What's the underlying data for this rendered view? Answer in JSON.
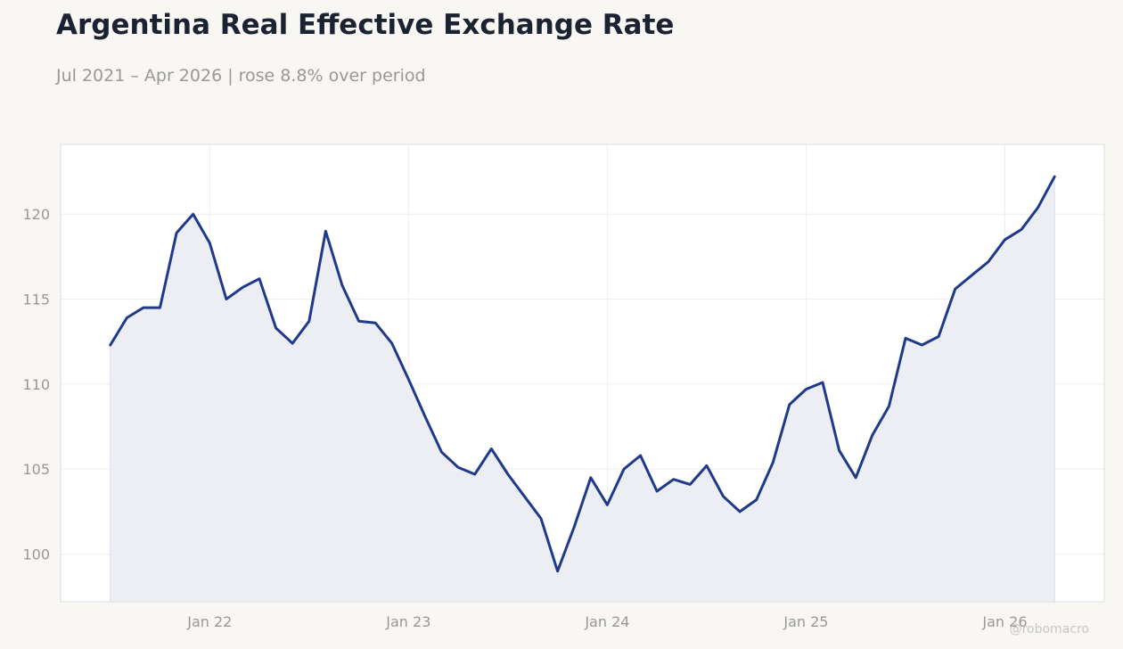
{
  "title": "Argentina Real Effective Exchange Rate",
  "subtitle": "Jul 2021 – Apr 2026 | rose 8.8% over period",
  "watermark": "@robomacro",
  "colors": {
    "line": "#1f3a8a",
    "fill": "#eceef4",
    "grid": "#eeeeee",
    "frame": "#dddddd",
    "background": "#f8f7f4",
    "plot_background": "#ffffff"
  },
  "chart_data": {
    "type": "area",
    "title": "Argentina Real Effective Exchange Rate",
    "subtitle": "Jul 2021 – Apr 2026 | rose 8.8% over period",
    "xlabel": "",
    "ylabel": "",
    "x_ticks": [
      {
        "date": "2022-01",
        "label": "Jan 22"
      },
      {
        "date": "2023-01",
        "label": "Jan 23"
      },
      {
        "date": "2024-01",
        "label": "Jan 24"
      },
      {
        "date": "2025-01",
        "label": "Jan 25"
      },
      {
        "date": "2026-01",
        "label": "Jan 26"
      }
    ],
    "y_ticks": [
      100,
      105,
      110,
      115,
      120
    ],
    "xlim": [
      "2021-04",
      "2026-07"
    ],
    "ylim": [
      97.2,
      124.1
    ],
    "grid": true,
    "legend": "none",
    "series": [
      {
        "x": [
          "2021-07",
          "2021-08",
          "2021-09",
          "2021-10",
          "2021-11",
          "2021-12",
          "2022-01",
          "2022-02",
          "2022-03",
          "2022-04",
          "2022-05",
          "2022-06",
          "2022-07",
          "2022-08",
          "2022-09",
          "2022-10",
          "2022-11",
          "2022-12",
          "2023-01",
          "2023-02",
          "2023-03",
          "2023-04",
          "2023-05",
          "2023-06",
          "2023-07",
          "2023-08",
          "2023-09",
          "2023-10",
          "2023-11",
          "2023-12",
          "2024-01",
          "2024-02",
          "2024-03",
          "2024-04",
          "2024-05",
          "2024-06",
          "2024-07",
          "2024-08",
          "2024-09",
          "2024-10",
          "2024-11",
          "2024-12",
          "2025-01",
          "2025-02",
          "2025-03",
          "2025-04",
          "2025-05",
          "2025-06",
          "2025-07",
          "2025-08",
          "2025-09",
          "2025-10",
          "2025-11",
          "2025-12",
          "2026-01",
          "2026-02",
          "2026-03",
          "2026-04"
        ],
        "values": [
          112.3,
          113.9,
          114.5,
          114.5,
          118.9,
          120.0,
          118.3,
          115.0,
          115.7,
          116.2,
          113.3,
          112.4,
          113.7,
          119.0,
          115.8,
          113.7,
          113.6,
          112.4,
          110.3,
          108.1,
          106.0,
          105.1,
          104.7,
          106.2,
          104.7,
          103.4,
          102.1,
          99.0,
          101.6,
          104.5,
          102.9,
          105.0,
          105.8,
          103.7,
          104.4,
          104.1,
          105.2,
          103.4,
          102.5,
          103.2,
          105.4,
          108.8,
          109.7,
          110.1,
          106.1,
          104.5,
          107.0,
          108.7,
          112.7,
          112.3,
          112.8,
          115.6,
          116.4,
          117.2,
          118.5,
          119.1,
          120.4,
          122.2
        ]
      }
    ]
  }
}
